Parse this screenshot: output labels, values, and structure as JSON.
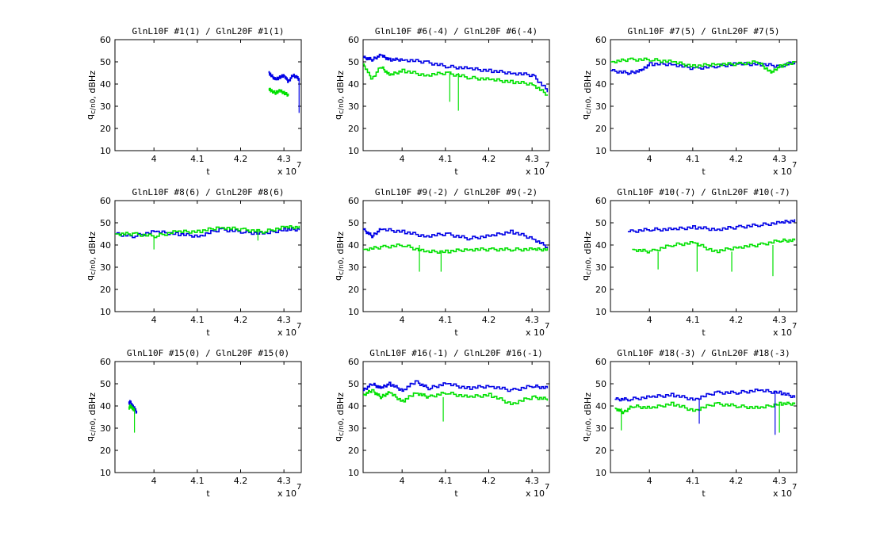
{
  "figure": {
    "background": "#ffffff",
    "series_colors": {
      "L1": "#0000e6",
      "L2": "#00e000"
    }
  },
  "chart_data": [
    {
      "type": "line",
      "title": "GlnL10F #1(1) / GlnL20F #1(1)",
      "xlabel": "t",
      "ylabel": "q_c/n0, dBHz",
      "x_exponent_label": "x 10^7",
      "xlim": [
        39100000.0,
        43400000.0
      ],
      "ylim": [
        10,
        60
      ],
      "xticks": [
        4,
        4.1,
        4.2,
        4.3
      ],
      "yticks": [
        10,
        20,
        30,
        40,
        50,
        60
      ],
      "series": [
        {
          "color": "#0000e6",
          "x": [
            42650000.0,
            42700000.0,
            42800000.0,
            42900000.0,
            43000000.0,
            43100000.0,
            43200000.0,
            43300000.0,
            43350000.0
          ],
          "y": [
            45,
            44,
            42,
            43,
            44,
            41,
            44,
            43,
            42
          ]
        },
        {
          "color": "#00e000",
          "x": [
            42650000.0,
            42700000.0,
            42800000.0,
            42900000.0,
            43000000.0,
            43100000.0
          ],
          "y": [
            38,
            37,
            36,
            37,
            36,
            35
          ]
        }
      ],
      "spikes": [
        {
          "color": "#0000e6",
          "x": 43350000.0,
          "y": 27
        }
      ]
    },
    {
      "type": "line",
      "title": "GlnL10F #6(-4) / GlnL20F #6(-4)",
      "xlabel": "t",
      "ylabel": "q_c/n0, dBHz",
      "x_exponent_label": "x 10^7",
      "xlim": [
        39100000.0,
        43400000.0
      ],
      "ylim": [
        10,
        60
      ],
      "xticks": [
        4,
        4.1,
        4.2,
        4.3
      ],
      "yticks": [
        10,
        20,
        30,
        40,
        50,
        60
      ],
      "series": [
        {
          "color": "#0000e6",
          "x": [
            39100000.0,
            39300000.0,
            39500000.0,
            39700000.0,
            40000000.0,
            40500000.0,
            41000000.0,
            41500000.0,
            42000000.0,
            42500000.0,
            43000000.0,
            43350000.0
          ],
          "y": [
            52,
            51,
            53,
            51,
            51,
            50,
            48,
            47,
            46,
            45,
            44,
            37
          ]
        },
        {
          "color": "#00e000",
          "x": [
            39100000.0,
            39300000.0,
            39500000.0,
            39700000.0,
            40000000.0,
            40500000.0,
            41000000.0,
            41500000.0,
            42000000.0,
            42500000.0,
            43000000.0,
            43350000.0
          ],
          "y": [
            49,
            42,
            48,
            44,
            46,
            44,
            45,
            43,
            42,
            41,
            40,
            35
          ]
        }
      ],
      "spikes": [
        {
          "color": "#00e000",
          "x": 41100000.0,
          "y": 32
        },
        {
          "color": "#00e000",
          "x": 41300000.0,
          "y": 28
        }
      ]
    },
    {
      "type": "line",
      "title": "GlnL10F #7(5) / GlnL20F #7(5)",
      "xlabel": "t",
      "ylabel": "q_c/n0, dBHz",
      "x_exponent_label": "x 10^7",
      "xlim": [
        39100000.0,
        43400000.0
      ],
      "ylim": [
        10,
        60
      ],
      "xticks": [
        4,
        4.1,
        4.2,
        4.3
      ],
      "yticks": [
        10,
        20,
        30,
        40,
        50,
        60
      ],
      "series": [
        {
          "color": "#0000e6",
          "x": [
            39100000.0,
            39500000.0,
            39800000.0,
            40000000.0,
            40500000.0,
            41000000.0,
            41500000.0,
            42000000.0,
            42500000.0,
            43000000.0,
            43350000.0
          ],
          "y": [
            46,
            45,
            46,
            49,
            49,
            47,
            48,
            49,
            49,
            48,
            50
          ]
        },
        {
          "color": "#00e000",
          "x": [
            39100000.0,
            39500000.0,
            40000000.0,
            40500000.0,
            41000000.0,
            41500000.0,
            42000000.0,
            42500000.0,
            42800000.0,
            43000000.0,
            43350000.0
          ],
          "y": [
            50,
            51,
            51,
            50,
            48,
            49,
            49,
            50,
            45,
            48,
            50
          ]
        }
      ],
      "spikes": []
    },
    {
      "type": "line",
      "title": "GlnL10F #8(6) / GlnL20F #8(6)",
      "xlabel": "t",
      "ylabel": "q_c/n0, dBHz",
      "x_exponent_label": "x 10^7",
      "xlim": [
        39100000.0,
        43400000.0
      ],
      "ylim": [
        10,
        60
      ],
      "xticks": [
        4,
        4.1,
        4.2,
        4.3
      ],
      "yticks": [
        10,
        20,
        30,
        40,
        50,
        60
      ],
      "series": [
        {
          "color": "#0000e6",
          "x": [
            39100000.0,
            39500000.0,
            40000000.0,
            40500000.0,
            41000000.0,
            41500000.0,
            42000000.0,
            42500000.0,
            43000000.0,
            43350000.0
          ],
          "y": [
            45,
            44,
            46,
            45,
            44,
            47,
            46,
            45,
            47,
            47
          ]
        },
        {
          "color": "#00e000",
          "x": [
            39100000.0,
            39500000.0,
            40000000.0,
            40500000.0,
            41000000.0,
            41500000.0,
            42000000.0,
            42500000.0,
            43000000.0,
            43350000.0
          ],
          "y": [
            45,
            45,
            44,
            46,
            46,
            48,
            47,
            46,
            48,
            48
          ]
        }
      ],
      "spikes": [
        {
          "color": "#00e000",
          "x": 40000000.0,
          "y": 38
        },
        {
          "color": "#00e000",
          "x": 42400000.0,
          "y": 42
        }
      ]
    },
    {
      "type": "line",
      "title": "GlnL10F #9(-2) / GlnL20F #9(-2)",
      "xlabel": "t",
      "ylabel": "q_c/n0, dBHz",
      "x_exponent_label": "x 10^7",
      "xlim": [
        39100000.0,
        43400000.0
      ],
      "ylim": [
        10,
        60
      ],
      "xticks": [
        4,
        4.1,
        4.2,
        4.3
      ],
      "yticks": [
        10,
        20,
        30,
        40,
        50,
        60
      ],
      "series": [
        {
          "color": "#0000e6",
          "x": [
            39100000.0,
            39300000.0,
            39500000.0,
            40000000.0,
            40500000.0,
            41000000.0,
            41500000.0,
            42000000.0,
            42500000.0,
            43000000.0,
            43350000.0
          ],
          "y": [
            47,
            44,
            47,
            46,
            44,
            45,
            43,
            44,
            46,
            43,
            39
          ]
        },
        {
          "color": "#00e000",
          "x": [
            39100000.0,
            39500000.0,
            40000000.0,
            40500000.0,
            41000000.0,
            41500000.0,
            42000000.0,
            42500000.0,
            43000000.0,
            43350000.0
          ],
          "y": [
            38,
            39,
            40,
            37,
            37,
            38,
            38,
            38,
            38,
            38
          ]
        }
      ],
      "spikes": [
        {
          "color": "#00e000",
          "x": 40400000.0,
          "y": 28
        },
        {
          "color": "#00e000",
          "x": 40900000.0,
          "y": 28
        }
      ]
    },
    {
      "type": "line",
      "title": "GlnL10F #10(-7) / GlnL20F #10(-7)",
      "xlabel": "t",
      "ylabel": "q_c/n0, dBHz",
      "x_exponent_label": "x 10^7",
      "xlim": [
        39100000.0,
        43400000.0
      ],
      "ylim": [
        10,
        60
      ],
      "xticks": [
        4,
        4.1,
        4.2,
        4.3
      ],
      "yticks": [
        10,
        20,
        30,
        40,
        50,
        60
      ],
      "series": [
        {
          "color": "#0000e6",
          "x": [
            39500000.0,
            40000000.0,
            40500000.0,
            41000000.0,
            41500000.0,
            42000000.0,
            42500000.0,
            43000000.0,
            43350000.0
          ],
          "y": [
            46,
            47,
            47,
            48,
            47,
            48,
            49,
            50,
            51
          ]
        },
        {
          "color": "#00e000",
          "x": [
            39600000.0,
            40000000.0,
            40500000.0,
            41000000.0,
            41500000.0,
            42000000.0,
            42500000.0,
            43000000.0,
            43350000.0
          ],
          "y": [
            38,
            37,
            40,
            41,
            37,
            39,
            40,
            42,
            42
          ]
        }
      ],
      "spikes": [
        {
          "color": "#00e000",
          "x": 40200000.0,
          "y": 29
        },
        {
          "color": "#00e000",
          "x": 41100000.0,
          "y": 28
        },
        {
          "color": "#00e000",
          "x": 41900000.0,
          "y": 28
        },
        {
          "color": "#00e000",
          "x": 42850000.0,
          "y": 26
        }
      ]
    },
    {
      "type": "line",
      "title": "GlnL10F #15(0) / GlnL20F #15(0)",
      "xlabel": "t",
      "ylabel": "q_c/n0, dBHz",
      "x_exponent_label": "x 10^7",
      "xlim": [
        39100000.0,
        43400000.0
      ],
      "ylim": [
        10,
        60
      ],
      "xticks": [
        4,
        4.1,
        4.2,
        4.3
      ],
      "yticks": [
        10,
        20,
        30,
        40,
        50,
        60
      ],
      "series": [
        {
          "color": "#0000e6",
          "x": [
            39420000.0,
            39450000.0,
            39500000.0,
            39550000.0,
            39600000.0
          ],
          "y": [
            41,
            42,
            40,
            39,
            37
          ]
        },
        {
          "color": "#00e000",
          "x": [
            39420000.0,
            39450000.0,
            39500000.0,
            39550000.0
          ],
          "y": [
            39,
            40,
            39,
            38
          ]
        }
      ],
      "spikes": [
        {
          "color": "#00e000",
          "x": 39550000.0,
          "y": 28
        }
      ]
    },
    {
      "type": "line",
      "title": "GlnL10F #16(-1) / GlnL20F #16(-1)",
      "xlabel": "t",
      "ylabel": "q_c/n0, dBHz",
      "x_exponent_label": "x 10^7",
      "xlim": [
        39100000.0,
        43400000.0
      ],
      "ylim": [
        10,
        60
      ],
      "xticks": [
        4,
        4.1,
        4.2,
        4.3
      ],
      "yticks": [
        10,
        20,
        30,
        40,
        50,
        60
      ],
      "series": [
        {
          "color": "#0000e6",
          "x": [
            39100000.0,
            39300000.0,
            39500000.0,
            39700000.0,
            40000000.0,
            40300000.0,
            40600000.0,
            41000000.0,
            41500000.0,
            42000000.0,
            42500000.0,
            43000000.0,
            43350000.0
          ],
          "y": [
            47,
            50,
            48,
            50,
            47,
            51,
            48,
            50,
            48,
            49,
            47,
            49,
            48
          ]
        },
        {
          "color": "#00e000",
          "x": [
            39100000.0,
            39300000.0,
            39500000.0,
            39700000.0,
            40000000.0,
            40300000.0,
            40600000.0,
            41000000.0,
            41500000.0,
            42000000.0,
            42500000.0,
            43000000.0,
            43350000.0
          ],
          "y": [
            45,
            47,
            44,
            46,
            42,
            46,
            44,
            46,
            44,
            45,
            41,
            44,
            43
          ]
        }
      ],
      "spikes": [
        {
          "color": "#00e000",
          "x": 40950000.0,
          "y": 33
        }
      ]
    },
    {
      "type": "line",
      "title": "GlnL10F #18(-3) / GlnL20F #18(-3)",
      "xlabel": "t",
      "ylabel": "q_c/n0, dBHz",
      "x_exponent_label": "x 10^7",
      "xlim": [
        39100000.0,
        43400000.0
      ],
      "ylim": [
        10,
        60
      ],
      "xticks": [
        4,
        4.1,
        4.2,
        4.3
      ],
      "yticks": [
        10,
        20,
        30,
        40,
        50,
        60
      ],
      "series": [
        {
          "color": "#0000e6",
          "x": [
            39200000.0,
            39500000.0,
            40000000.0,
            40500000.0,
            41000000.0,
            41500000.0,
            42000000.0,
            42500000.0,
            43000000.0,
            43350000.0
          ],
          "y": [
            43,
            43,
            44,
            45,
            43,
            46,
            46,
            47,
            46,
            44
          ]
        },
        {
          "color": "#00e000",
          "x": [
            39200000.0,
            39400000.0,
            39600000.0,
            40000000.0,
            40500000.0,
            41000000.0,
            41500000.0,
            42000000.0,
            42500000.0,
            43000000.0,
            43350000.0
          ],
          "y": [
            39,
            37,
            40,
            39,
            41,
            38,
            41,
            40,
            39,
            41,
            41
          ]
        }
      ],
      "spikes": [
        {
          "color": "#0000e6",
          "x": 42900000.0,
          "y": 27
        },
        {
          "color": "#00e000",
          "x": 43000000.0,
          "y": 28
        },
        {
          "color": "#0000e6",
          "x": 41150000.0,
          "y": 32
        },
        {
          "color": "#00e000",
          "x": 39350000.0,
          "y": 29
        }
      ]
    }
  ]
}
